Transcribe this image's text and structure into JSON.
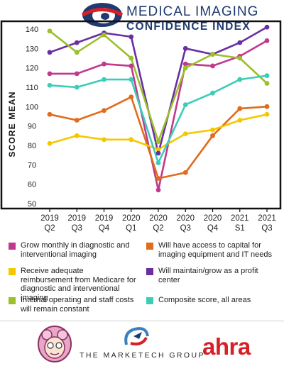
{
  "header": {
    "line1": "MEDICAL IMAGING",
    "line2": "CONFIDENCE INDEX"
  },
  "footer": {
    "marketech": "THE MARKETECH GROUP",
    "ahra": "ahra"
  },
  "chart_data": {
    "type": "line",
    "title": "",
    "ylabel": "SCORE MEAN",
    "xlabel": "",
    "ylim": [
      45,
      143
    ],
    "yticks": [
      140,
      130,
      120,
      110,
      100,
      90,
      80,
      70,
      60,
      50
    ],
    "grid": false,
    "legend_position": "bottom",
    "categories": [
      [
        "2019",
        "Q2"
      ],
      [
        "2019",
        "Q3"
      ],
      [
        "2019",
        "Q4"
      ],
      [
        "2020",
        "Q1"
      ],
      [
        "2020",
        "Q2"
      ],
      [
        "2020",
        "Q3"
      ],
      [
        "2020",
        "Q4"
      ],
      [
        "2021",
        "S1"
      ],
      [
        "2021",
        "Q3"
      ]
    ],
    "series": [
      {
        "name": "Grow monthly in diagnostic and interventional imaging",
        "color": "#c0398e",
        "values": [
          117,
          117,
          122,
          121,
          57,
          122,
          121,
          126,
          134
        ]
      },
      {
        "name": "Will have access to capital for imaging equipment and IT needs",
        "color": "#e06c1c",
        "values": [
          96,
          93,
          98,
          105,
          63,
          66,
          85,
          99,
          100
        ]
      },
      {
        "name": "Receive adequate reimbursement from Medicare for diagnostic and interventional imaging",
        "color": "#f4c800",
        "values": [
          81,
          85,
          83,
          83,
          78,
          86,
          88,
          93,
          96
        ]
      },
      {
        "name": "Will maintain/grow as a profit center",
        "color": "#6a2ea3",
        "values": [
          128,
          133,
          138,
          136,
          76,
          130,
          127,
          133,
          141
        ]
      },
      {
        "name": "Internal operating and staff costs will remain constant",
        "color": "#9cbf2b",
        "values": [
          139,
          128,
          137,
          125,
          82,
          120,
          127,
          125,
          112
        ]
      },
      {
        "name": "Composite score, all areas",
        "color": "#3ccdb9",
        "values": [
          111,
          110,
          114,
          114,
          71,
          101,
          107,
          114,
          116
        ]
      }
    ],
    "legend_order": [
      0,
      1,
      2,
      3,
      4,
      5
    ]
  }
}
